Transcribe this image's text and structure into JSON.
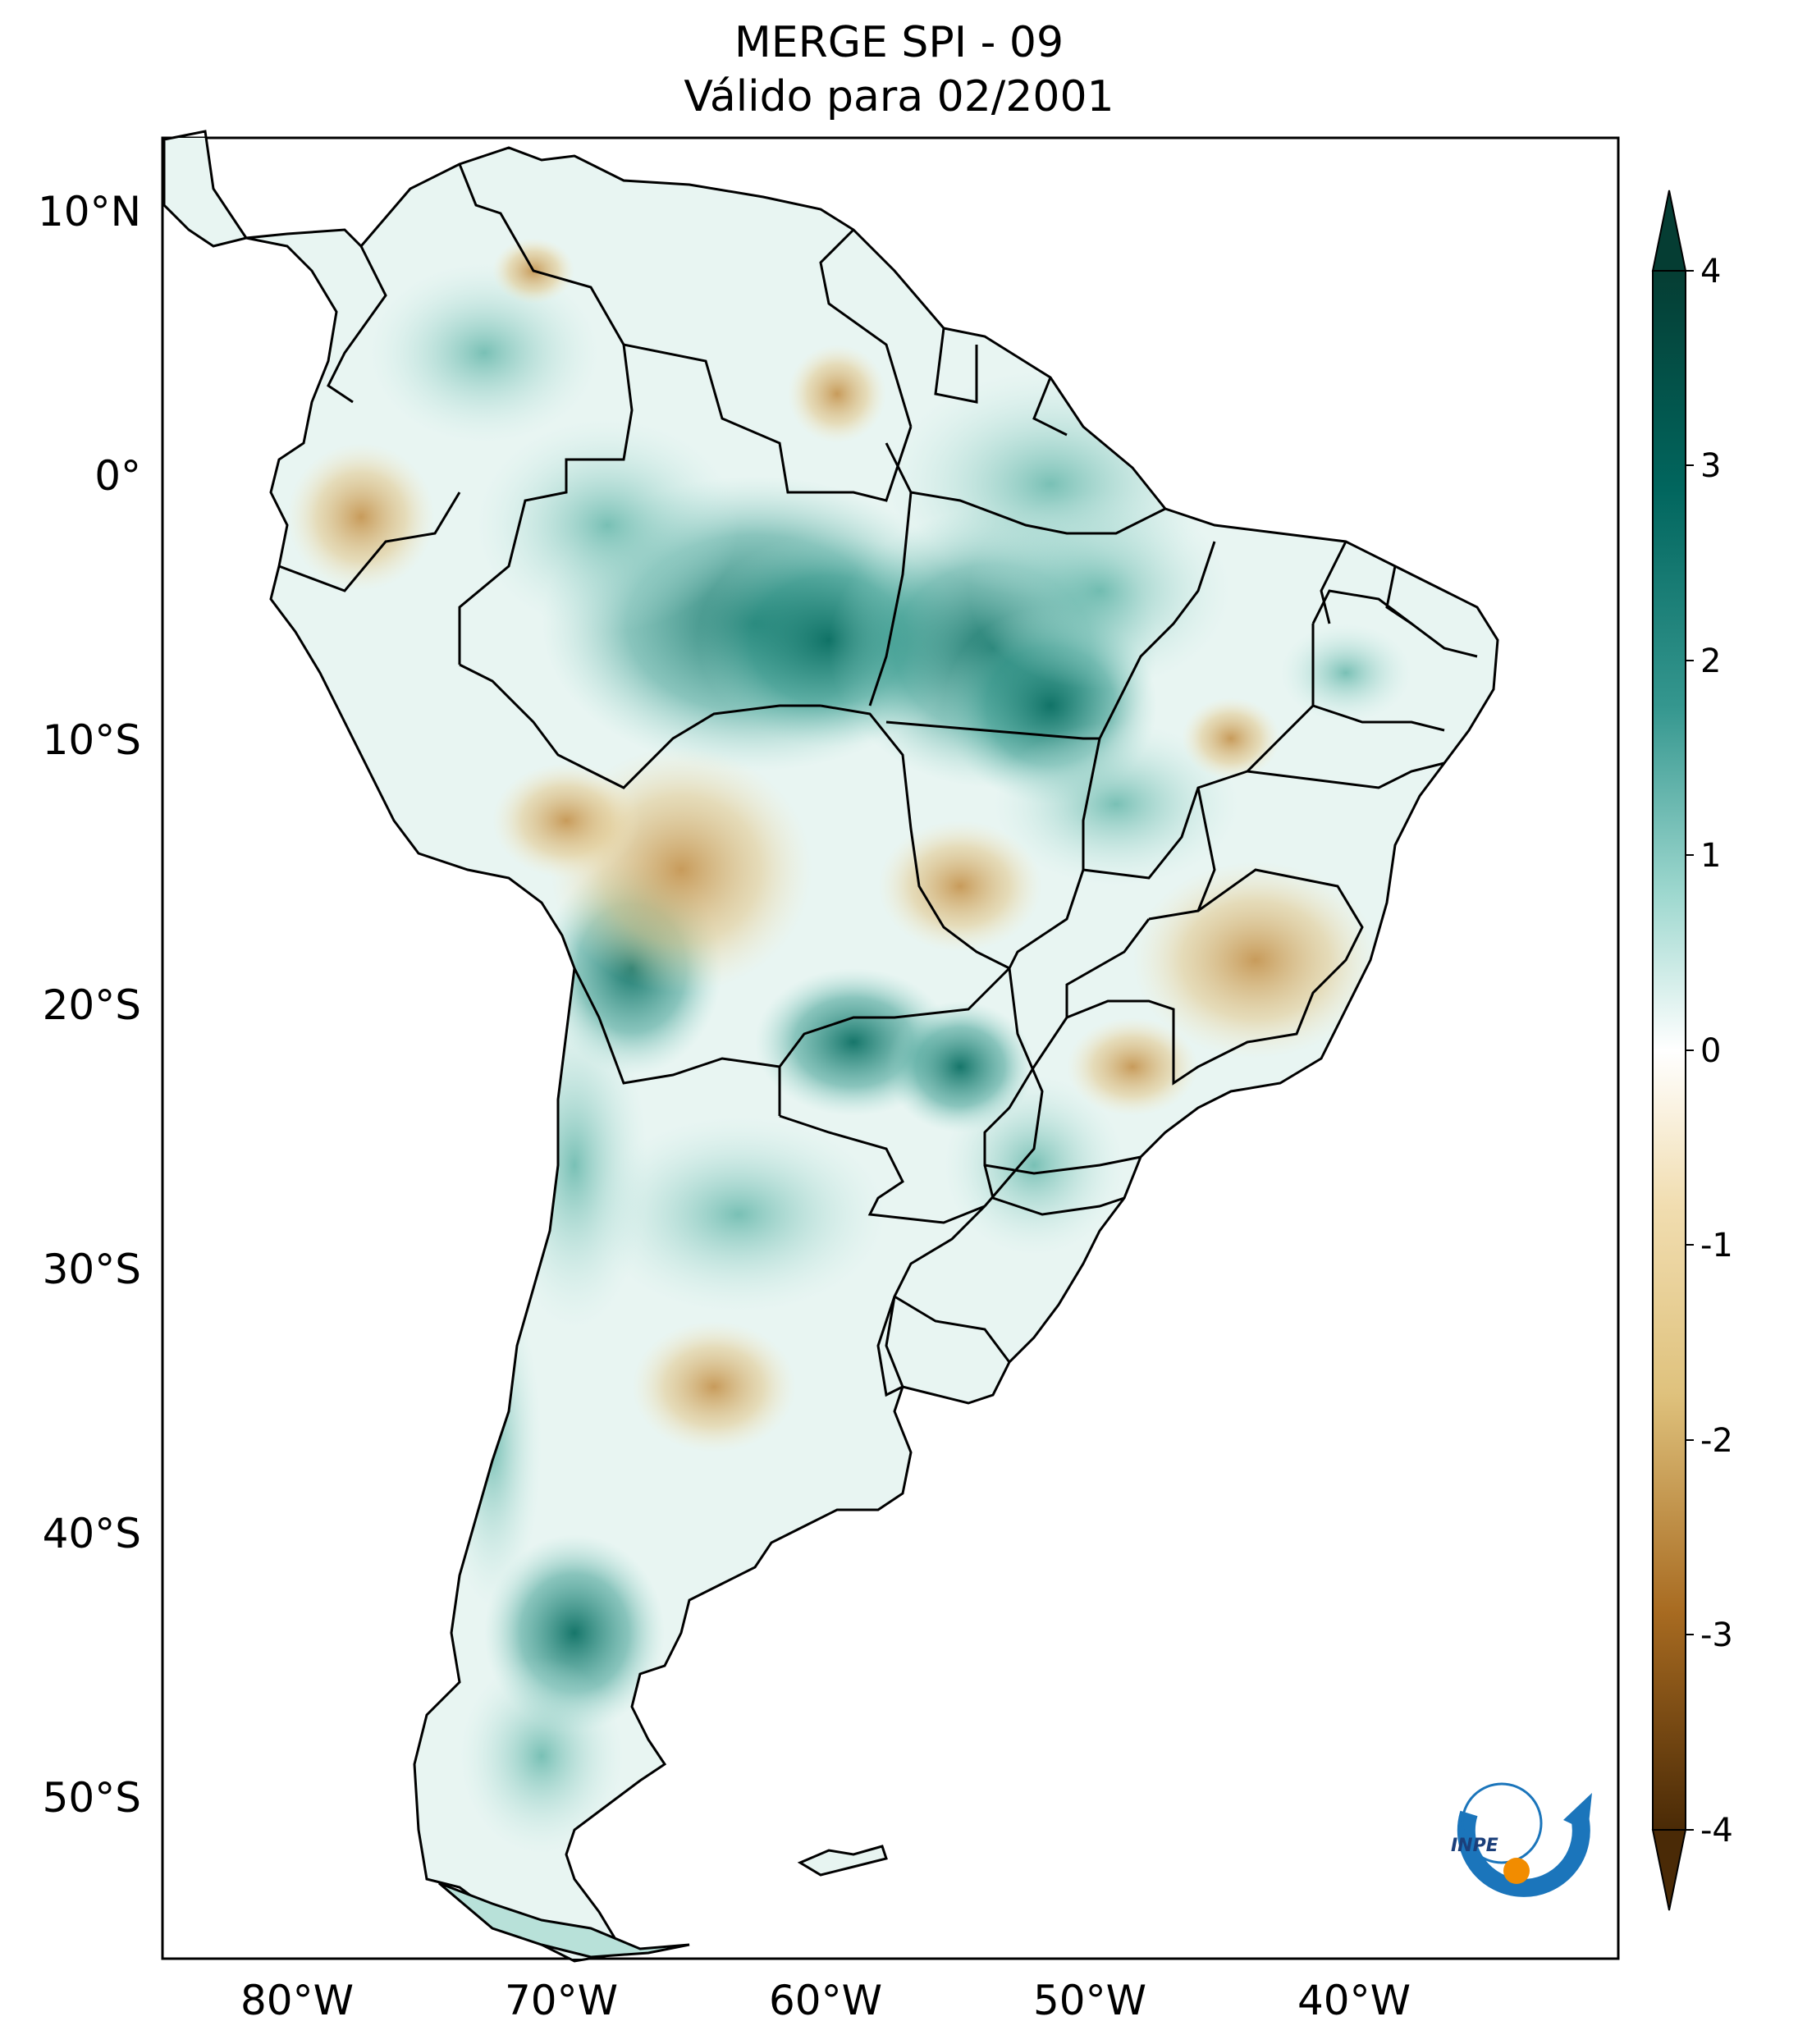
{
  "title": {
    "line1": "MERGE   SPI - 09",
    "line2": "Válido para 02/2001"
  },
  "map": {
    "region": "South America",
    "lat_ticks": [
      "10°N",
      "0°",
      "10°S",
      "20°S",
      "30°S",
      "40°S",
      "50°S"
    ],
    "lon_ticks": [
      "80°W",
      "70°W",
      "60°W",
      "50°W",
      "40°W"
    ]
  },
  "colorbar": {
    "ticks": [
      "4",
      "3",
      "2",
      "1",
      "0",
      "-1",
      "-2",
      "-3",
      "-4"
    ],
    "colors": {
      "max": "#053d33",
      "high": "#01665e",
      "mid_high": "#35978f",
      "low_pos": "#c7eae5",
      "zero": "#ffffff",
      "low_neg": "#f6e8c3",
      "mid_low": "#dfc27d",
      "low": "#8c510a",
      "min": "#4a2a06"
    }
  },
  "logo": {
    "text": "INPE"
  }
}
